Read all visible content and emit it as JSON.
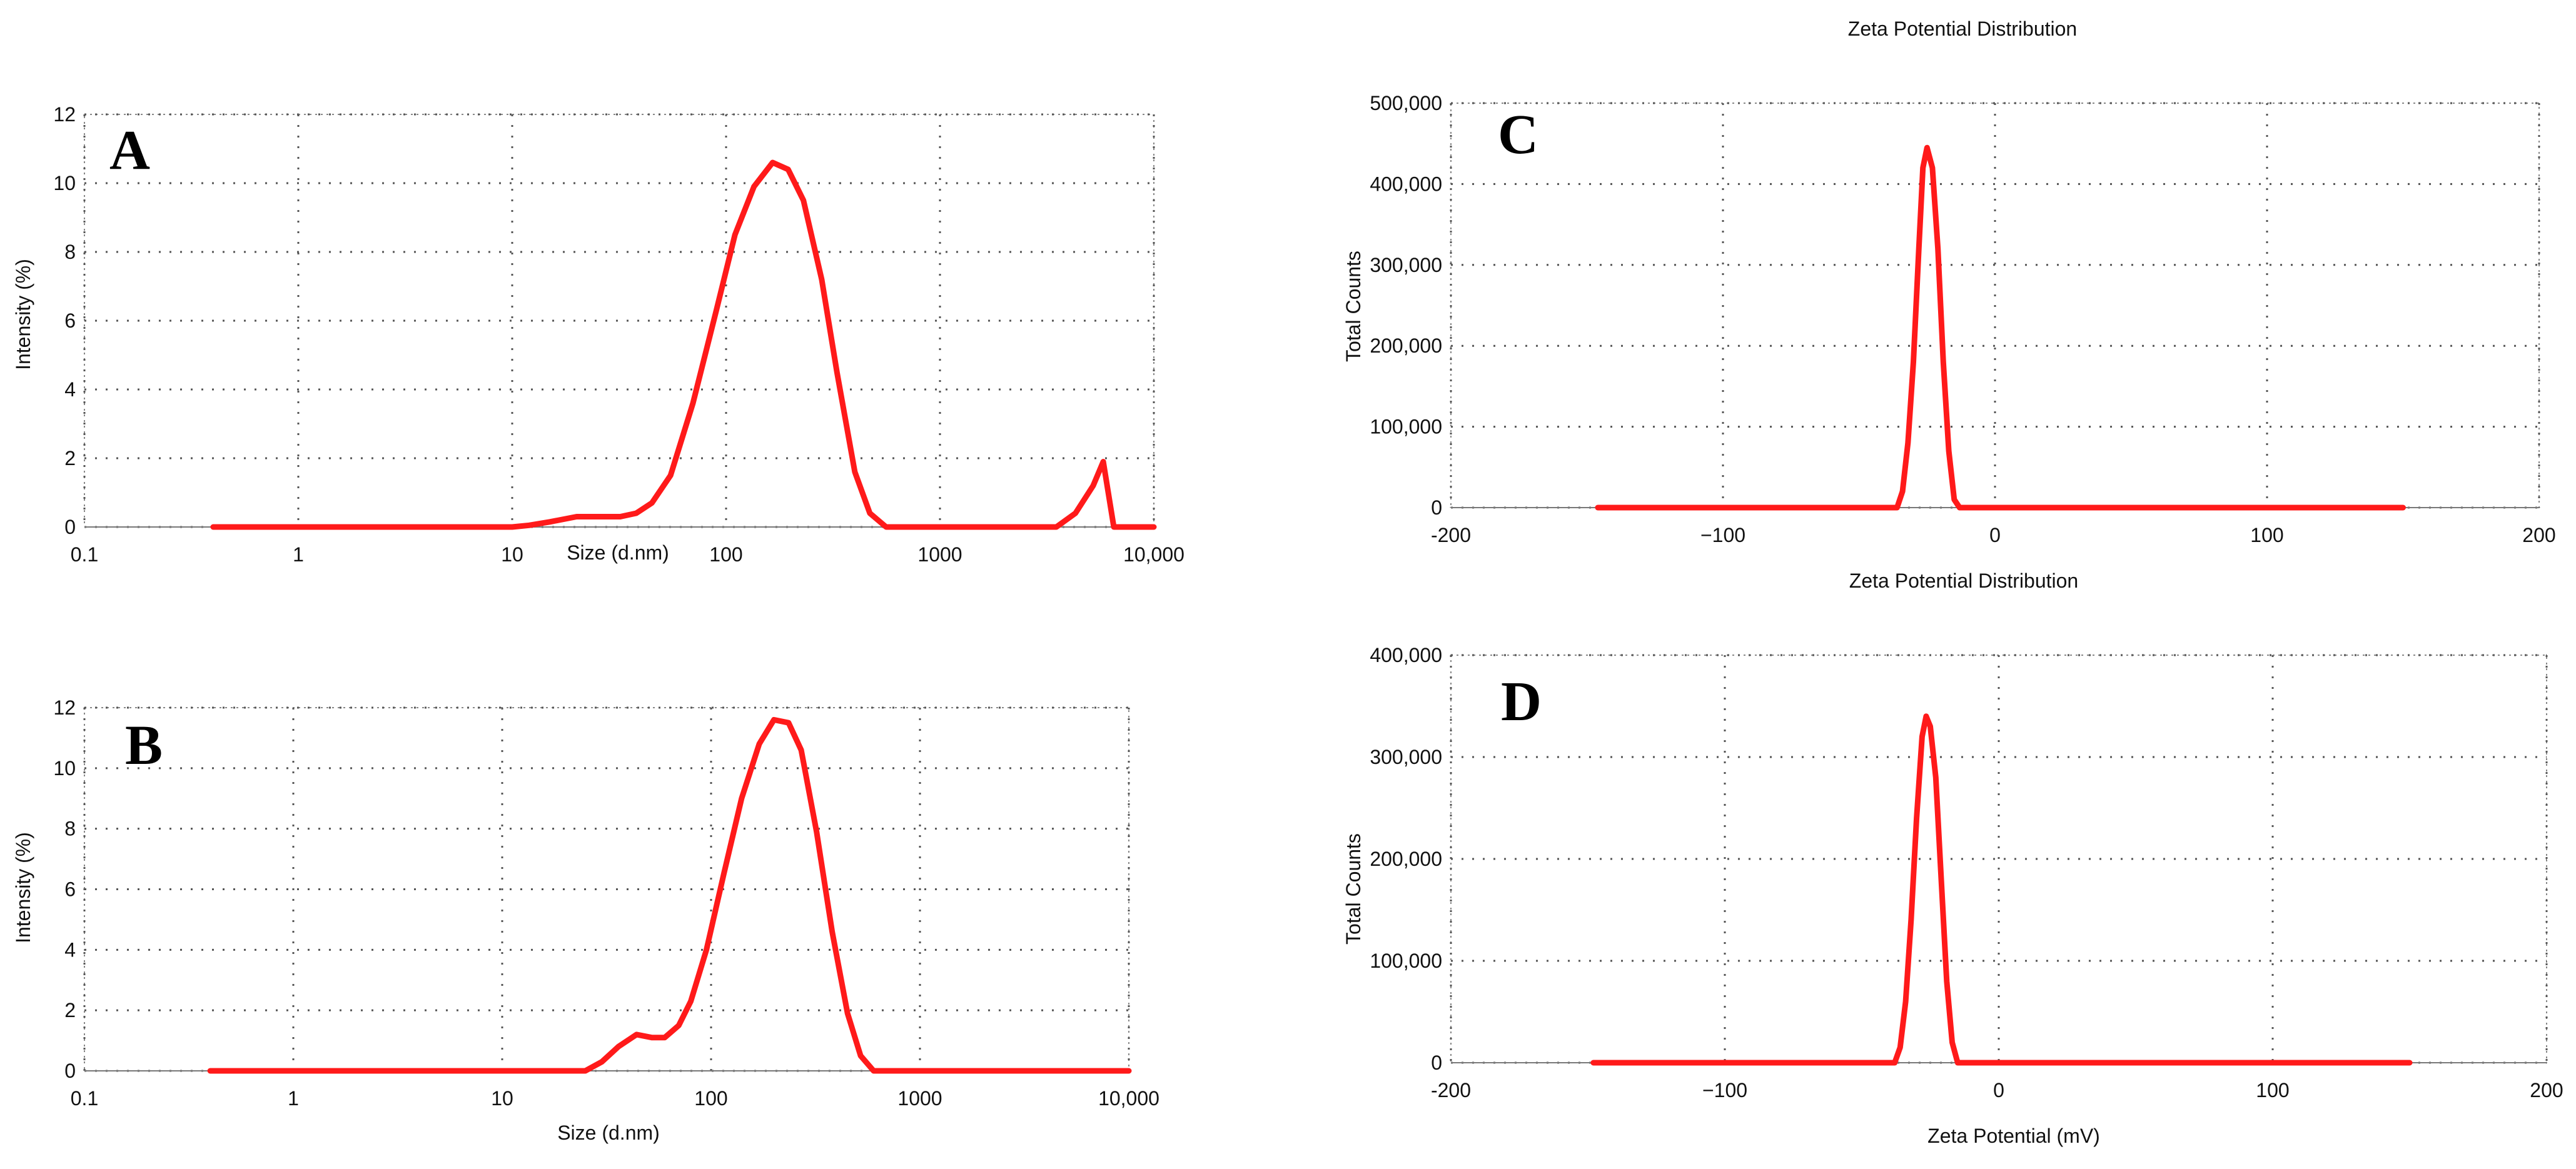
{
  "colors": {
    "series": "#ff1a1a",
    "grid": "#555555",
    "text": "#111111"
  },
  "chart_data": [
    {
      "id": "A",
      "type": "line",
      "panel_label": "A",
      "title": "",
      "xlabel": "Size (d.nm)",
      "ylabel": "Intensity (%)",
      "xscale": "log",
      "xlim": [
        0.1,
        10000
      ],
      "ylim": [
        0,
        12
      ],
      "x_ticks": [
        0.1,
        1,
        10,
        100,
        1000,
        10000
      ],
      "x_tick_labels": [
        "0.1",
        "1",
        "10",
        "100",
        "1000",
        "10,000"
      ],
      "y_ticks": [
        0,
        2,
        4,
        6,
        8,
        10,
        12
      ],
      "y_tick_labels": [
        "0",
        "2",
        "4",
        "6",
        "8",
        "10",
        "12"
      ],
      "grid": true,
      "series": [
        {
          "name": "Intensity",
          "x": [
            0.4,
            1,
            5,
            10,
            12,
            15,
            20,
            25,
            32,
            38,
            45,
            55,
            70,
            90,
            110,
            135,
            165,
            195,
            230,
            280,
            330,
            400,
            470,
            560,
            1000,
            3500,
            4300,
            5200,
            5800,
            6500,
            7500,
            10000
          ],
          "y": [
            0,
            0,
            0,
            0,
            0.05,
            0.15,
            0.3,
            0.3,
            0.3,
            0.4,
            0.7,
            1.5,
            3.6,
            6.3,
            8.5,
            9.9,
            10.6,
            10.4,
            9.5,
            7.2,
            4.5,
            1.6,
            0.4,
            0,
            0,
            0,
            0.4,
            1.2,
            1.9,
            0,
            0,
            0
          ]
        }
      ]
    },
    {
      "id": "B",
      "type": "line",
      "panel_label": "B",
      "title": "",
      "xlabel": "Size (d.nm)",
      "ylabel": "Intensity (%)",
      "xscale": "log",
      "xlim": [
        0.1,
        10000
      ],
      "ylim": [
        0,
        12
      ],
      "x_ticks": [
        0.1,
        1,
        10,
        100,
        1000,
        10000
      ],
      "x_tick_labels": [
        "0.1",
        "1",
        "10",
        "100",
        "1000",
        "10,000"
      ],
      "y_ticks": [
        0,
        2,
        4,
        6,
        8,
        10,
        12
      ],
      "y_tick_labels": [
        "0",
        "2",
        "4",
        "6",
        "8",
        "10",
        "12"
      ],
      "grid": true,
      "series": [
        {
          "name": "Intensity",
          "x": [
            0.4,
            1,
            10,
            25,
            30,
            36,
            44,
            52,
            60,
            70,
            80,
            95,
            115,
            140,
            170,
            200,
            235,
            270,
            320,
            380,
            450,
            520,
            600,
            1000,
            10000
          ],
          "y": [
            0,
            0,
            0,
            0,
            0.3,
            0.8,
            1.2,
            1.1,
            1.1,
            1.5,
            2.3,
            4.0,
            6.5,
            9.0,
            10.8,
            11.6,
            11.5,
            10.6,
            7.9,
            4.6,
            1.9,
            0.5,
            0,
            0,
            0
          ]
        }
      ]
    },
    {
      "id": "C",
      "type": "line",
      "panel_label": "C",
      "title": "Zeta Potential Distribution",
      "xlabel": "",
      "ylabel": "Total Counts",
      "xscale": "linear",
      "xlim": [
        -200,
        200
      ],
      "ylim": [
        0,
        500000
      ],
      "x_ticks": [
        -200,
        -100,
        0,
        100,
        200
      ],
      "x_tick_labels": [
        "-200",
        "−100",
        "0",
        "100",
        "200"
      ],
      "y_ticks": [
        0,
        100000,
        200000,
        300000,
        400000,
        500000
      ],
      "y_tick_labels": [
        "0",
        "100,000",
        "200,000",
        "300,000",
        "400,000",
        "500,000"
      ],
      "grid": true,
      "series": [
        {
          "name": "Total Counts",
          "x": [
            -146,
            -40,
            -36,
            -34,
            -32,
            -30,
            -28,
            -26.5,
            -25,
            -23,
            -21,
            -19,
            -17,
            -15,
            -13,
            150
          ],
          "y": [
            0,
            0,
            0,
            20000,
            80000,
            180000,
            320000,
            420000,
            445000,
            420000,
            320000,
            180000,
            70000,
            10000,
            0,
            0
          ]
        }
      ]
    },
    {
      "id": "D",
      "type": "line",
      "panel_label": "D",
      "title": "Zeta Potential Distribution",
      "xlabel": "Zeta Potential (mV)",
      "ylabel": "Total Counts",
      "xscale": "linear",
      "xlim": [
        -200,
        200
      ],
      "ylim": [
        0,
        400000
      ],
      "x_ticks": [
        -200,
        -100,
        0,
        100,
        200
      ],
      "x_tick_labels": [
        "-200",
        "−100",
        "0",
        "100",
        "200"
      ],
      "y_ticks": [
        0,
        100000,
        200000,
        300000,
        400000
      ],
      "y_tick_labels": [
        "0",
        "100,000",
        "200,000",
        "300,000",
        "400,000"
      ],
      "grid": true,
      "series": [
        {
          "name": "Total Counts",
          "x": [
            -148,
            -42,
            -38,
            -36,
            -34,
            -32,
            -30,
            -28,
            -26.5,
            -25,
            -23,
            -21,
            -19,
            -17,
            -15,
            -12,
            150
          ],
          "y": [
            0,
            0,
            0,
            15000,
            60000,
            140000,
            240000,
            320000,
            340000,
            330000,
            280000,
            180000,
            80000,
            20000,
            0,
            0,
            0
          ]
        }
      ]
    }
  ]
}
